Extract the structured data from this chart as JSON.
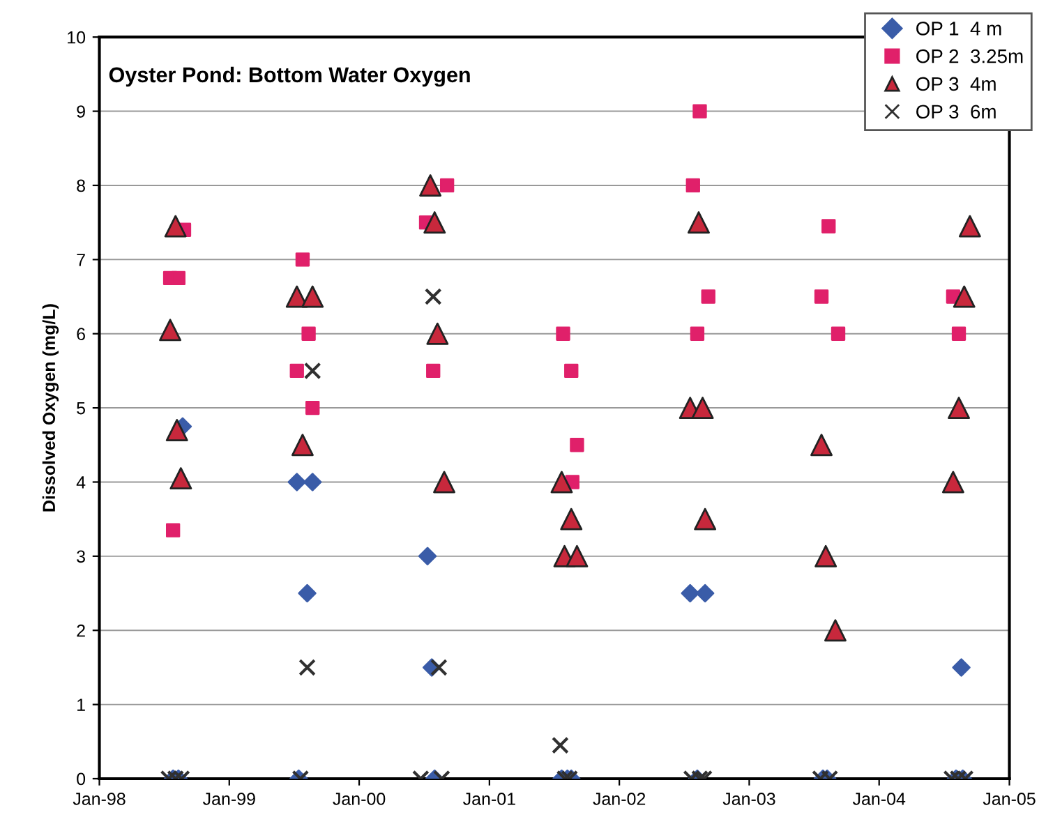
{
  "chart_data": {
    "type": "scatter",
    "title": "Oyster Pond: Bottom Water Oxygen",
    "ylabel": "Dissolved Oxygen (mg/L)",
    "xlim": [
      "1998-01-01",
      "2005-01-01"
    ],
    "xticks": [
      {
        "value": "1998-01-01",
        "label": "Jan-98"
      },
      {
        "value": "1999-01-01",
        "label": "Jan-99"
      },
      {
        "value": "2000-01-01",
        "label": "Jan-00"
      },
      {
        "value": "2001-01-01",
        "label": "Jan-01"
      },
      {
        "value": "2002-01-01",
        "label": "Jan-02"
      },
      {
        "value": "2003-01-01",
        "label": "Jan-03"
      },
      {
        "value": "2004-01-01",
        "label": "Jan-04"
      },
      {
        "value": "2005-01-01",
        "label": "Jan-05"
      }
    ],
    "ylim": [
      0,
      10
    ],
    "yticks": [
      0,
      1,
      2,
      3,
      4,
      5,
      6,
      7,
      8,
      9,
      10
    ],
    "grid": "y",
    "legend": "top right",
    "series": [
      {
        "name": "OP 1  4 m",
        "color": "#3a5ca8",
        "marker": "diamond",
        "x": [
          "1998-08-23",
          "1998-07-27",
          "1998-08-11",
          "1999-07-10",
          "1999-08-23",
          "1999-08-08",
          "1999-07-15",
          "2000-07-11",
          "2000-07-23",
          "2000-07-31",
          "2001-07-23",
          "2001-08-08",
          "2001-08-19",
          "2002-07-19",
          "2002-08-30",
          "2002-08-08",
          "2003-07-27",
          "2003-08-08",
          "2004-08-19",
          "2004-08-04",
          "2004-08-23"
        ],
        "values": [
          4.75,
          0,
          0,
          4.0,
          4.0,
          2.5,
          0,
          3.0,
          1.5,
          0,
          0,
          0,
          0,
          2.5,
          2.5,
          0,
          0,
          0,
          1.5,
          0,
          0
        ]
      },
      {
        "name": "OP 2  3.25m",
        "color": "#e0206a",
        "marker": "square",
        "x": [
          "1998-08-27",
          "1998-07-19",
          "1998-08-11",
          "1998-07-27",
          "1999-07-26",
          "1999-08-12",
          "1999-07-10",
          "1999-08-23",
          "2000-09-04",
          "2000-07-07",
          "2000-07-27",
          "2001-07-27",
          "2001-08-19",
          "2001-09-04",
          "2001-08-22",
          "2002-08-15",
          "2002-07-27",
          "2002-09-08",
          "2002-08-08",
          "2003-08-12",
          "2003-07-23",
          "2003-09-08",
          "2004-07-27",
          "2004-08-12"
        ],
        "values": [
          7.4,
          6.75,
          6.75,
          3.35,
          7.0,
          6.0,
          5.5,
          5.0,
          8.0,
          7.5,
          5.5,
          6.0,
          5.5,
          4.5,
          4.0,
          9.0,
          8.0,
          6.5,
          6.0,
          7.45,
          6.5,
          6.0,
          6.5,
          6.0
        ]
      },
      {
        "name": "OP 3  4m",
        "color": "#c8283c",
        "marker": "triangle",
        "x": [
          "1998-08-03",
          "1998-07-19",
          "1998-08-07",
          "1998-08-18",
          "1999-07-10",
          "1999-08-23",
          "1999-07-26",
          "2000-07-19",
          "2000-07-31",
          "2000-08-08",
          "2000-08-27",
          "2001-07-23",
          "2001-08-19",
          "2001-07-31",
          "2001-09-04",
          "2002-08-12",
          "2002-07-19",
          "2002-08-23",
          "2002-08-30",
          "2003-07-23",
          "2003-08-04",
          "2003-08-31",
          "2004-09-12",
          "2004-08-27",
          "2004-08-12",
          "2004-07-27"
        ],
        "values": [
          7.45,
          6.05,
          4.7,
          4.05,
          6.5,
          6.5,
          4.5,
          8.0,
          7.5,
          6.0,
          4.0,
          4.0,
          3.5,
          3.0,
          3.0,
          7.5,
          5.0,
          5.0,
          3.5,
          4.5,
          3.0,
          2.0,
          7.45,
          6.5,
          5.0,
          4.0
        ]
      },
      {
        "name": "OP 3  6m",
        "color": "#303030",
        "marker": "cross",
        "x": [
          "1998-07-15",
          "1998-08-03",
          "1998-08-20",
          "1999-08-23",
          "1999-08-08",
          "1999-07-20",
          "2000-07-27",
          "2000-08-12",
          "2000-06-22",
          "2000-08-20",
          "2001-07-19",
          "2001-08-01",
          "2001-08-14",
          "2002-07-23",
          "2002-08-15",
          "2002-08-27",
          "2003-07-20",
          "2003-08-15",
          "2004-07-23",
          "2004-08-10",
          "2004-08-30"
        ],
        "values": [
          0,
          0,
          0,
          5.5,
          1.5,
          0,
          6.5,
          1.5,
          0,
          0,
          0.45,
          0,
          0,
          0,
          0,
          0,
          0,
          0,
          0,
          0,
          0
        ]
      }
    ]
  }
}
